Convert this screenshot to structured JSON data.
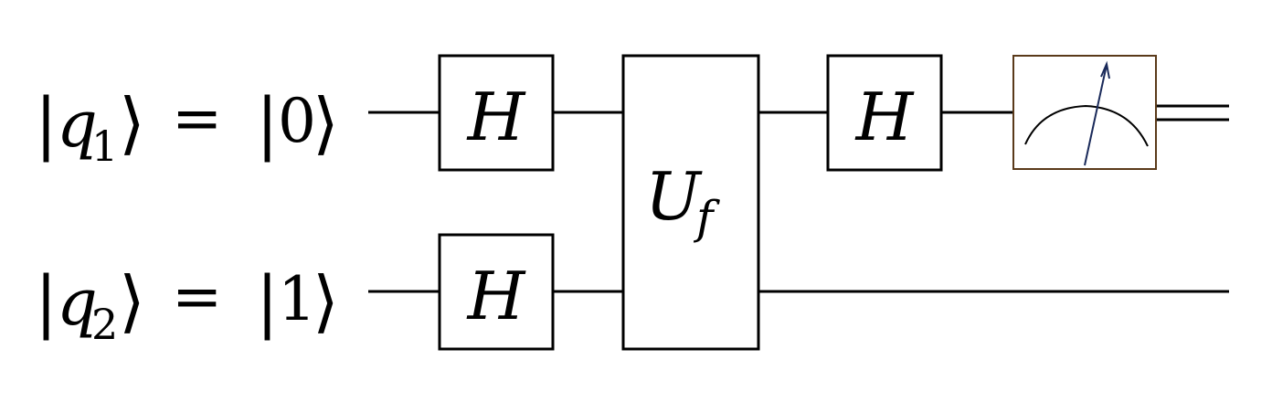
{
  "qubits": [
    {
      "name": "q",
      "index": "1",
      "state": "0"
    },
    {
      "name": "q",
      "index": "2",
      "state": "1"
    }
  ],
  "symbols": {
    "equals": "=",
    "bar": "|",
    "angle": "⟩"
  },
  "gates": {
    "hadamard_q1_first": "H",
    "hadamard_q2_first": "H",
    "oracle": "U",
    "oracle_sub": "f",
    "hadamard_q1_second": "H"
  },
  "measurement": {
    "icon": "measurement-meter-icon",
    "output": "classical double wire"
  },
  "colors": {
    "line": "#000000",
    "meter_border": "#5a3a1a",
    "needle": "#1a2a5a"
  }
}
